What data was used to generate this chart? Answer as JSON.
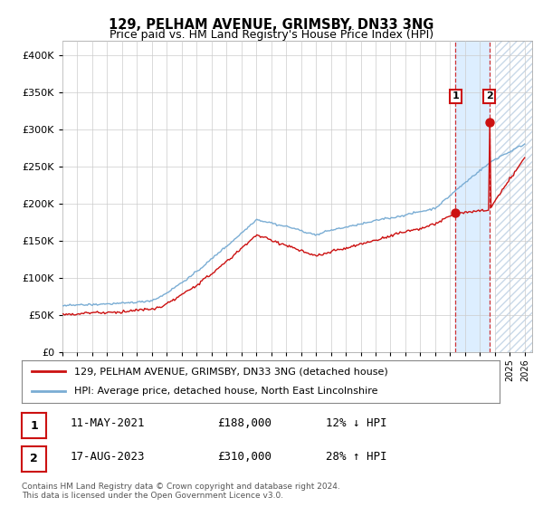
{
  "title": "129, PELHAM AVENUE, GRIMSBY, DN33 3NG",
  "subtitle": "Price paid vs. HM Land Registry's House Price Index (HPI)",
  "legend_line1": "129, PELHAM AVENUE, GRIMSBY, DN33 3NG (detached house)",
  "legend_line2": "HPI: Average price, detached house, North East Lincolnshire",
  "annotation1_label": "1",
  "annotation1_date": "11-MAY-2021",
  "annotation1_price": "£188,000",
  "annotation1_hpi": "12% ↓ HPI",
  "annotation2_label": "2",
  "annotation2_date": "17-AUG-2023",
  "annotation2_price": "£310,000",
  "annotation2_hpi": "28% ↑ HPI",
  "footer_line1": "Contains HM Land Registry data © Crown copyright and database right 2024.",
  "footer_line2": "This data is licensed under the Open Government Licence v3.0.",
  "hpi_color": "#7aadd4",
  "price_color": "#cc1111",
  "background_color": "#ffffff",
  "grid_color": "#cccccc",
  "highlight_color": "#ddeeff",
  "hatch_color": "#c8d8e8",
  "sale1_t": 2021.36,
  "sale2_t": 2023.62,
  "sale1_price": 188000,
  "sale2_price": 310000,
  "ylim": [
    0,
    420000
  ],
  "xlim_start": 1995,
  "xlim_end": 2026.5
}
